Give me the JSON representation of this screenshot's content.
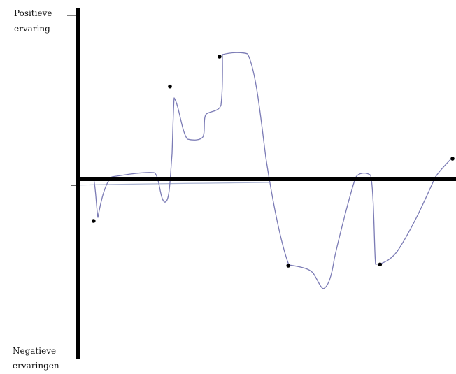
{
  "chart_data": {
    "type": "line",
    "title": "",
    "ylabel_top": [
      "Positieve",
      "ervaring"
    ],
    "ylabel_bottom": [
      "Negatieve",
      "ervaringen"
    ],
    "grid": false,
    "legend": "none",
    "colors": {
      "axes": "#000000",
      "curve": "#7b7bb5",
      "baseline": "#aab3d0",
      "points": "#000000"
    },
    "marked_points": [
      {
        "x": 0.06,
        "y": -0.32
      },
      {
        "x": 0.26,
        "y": 0.76
      },
      {
        "x": 0.39,
        "y": 1.0
      },
      {
        "x": 0.57,
        "y": -0.68
      },
      {
        "x": 0.81,
        "y": -0.67
      },
      {
        "x": 1.0,
        "y": 0.18
      }
    ]
  }
}
